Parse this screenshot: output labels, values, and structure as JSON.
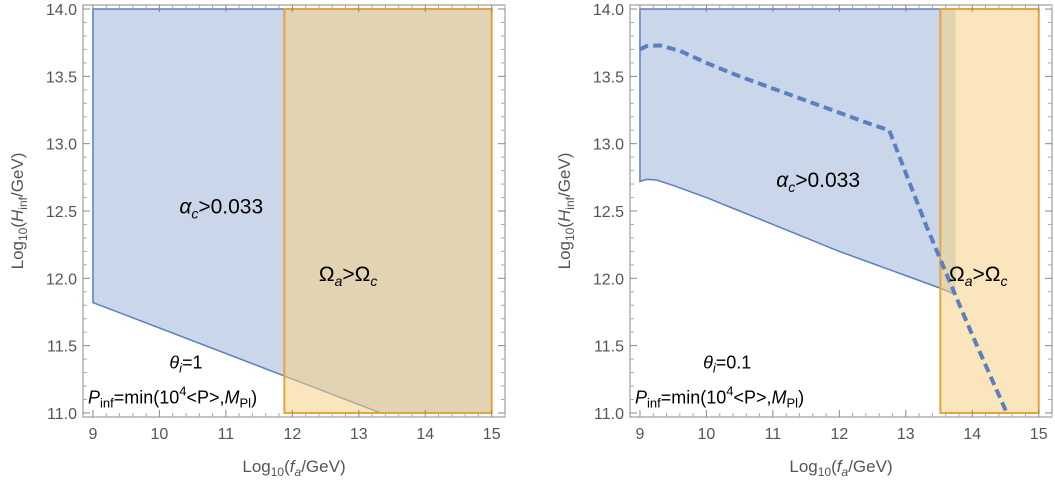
{
  "chart_data": [
    {
      "type": "area",
      "xlabel": {
        "base": "Log",
        "sub": "10",
        "open": "(",
        "var": "f",
        "varsub": "a",
        "rest": "/GeV)"
      },
      "ylabel": {
        "base": "Log",
        "sub": "10",
        "open": "(",
        "var": "H",
        "varsub": "inf",
        "rest": "/GeV)"
      },
      "xlim": [
        8.85,
        15.2
      ],
      "ylim": [
        10.97,
        14.03
      ],
      "xticks": [
        9,
        10,
        11,
        12,
        13,
        14,
        15
      ],
      "yticks": [
        11.0,
        11.5,
        12.0,
        12.5,
        13.0,
        13.5,
        14.0
      ],
      "xtick_labels": [
        "9",
        "10",
        "11",
        "12",
        "13",
        "14",
        "15"
      ],
      "ytick_labels": [
        "11.0",
        "11.5",
        "12.0",
        "12.5",
        "13.0",
        "13.5",
        "14.0"
      ],
      "regions": [
        {
          "name": "alpha-c-region",
          "color": "#b8c9e3",
          "edge": "#5b7fbf",
          "lower_boundary": [
            [
              9.0,
              11.82
            ],
            [
              13.33,
              11.0
            ],
            [
              15.0,
              11.0
            ]
          ],
          "upper_y": 14.0,
          "x_range": [
            9.0,
            15.0
          ]
        },
        {
          "name": "omega-a-region",
          "color": "#f5cf85",
          "edge": "#e6a23c",
          "x_range": [
            11.88,
            15.0
          ],
          "y_range": [
            11.0,
            14.0
          ]
        }
      ],
      "curves": [],
      "annotations": [
        {
          "kind": "alpha",
          "greek": "α",
          "sub": "c",
          "text": ">0.033",
          "x": 10.3,
          "y": 12.48
        },
        {
          "kind": "omega",
          "greek": "Ω",
          "sub": "a",
          "mid": ">Ω",
          "sub2": "c",
          "x": 12.4,
          "y": 11.98
        },
        {
          "kind": "theta",
          "greek": "θ",
          "sub": "i",
          "text": "=1",
          "x": 10.15,
          "y": 11.33
        },
        {
          "kind": "pinf",
          "text": "P",
          "sub": "inf",
          "mid": "=min(10",
          "sup": "4",
          "mid2": "<P>,",
          "var": "M",
          "sub2": "Pl",
          "end": ")",
          "x": 9.0,
          "y": 11.07
        }
      ]
    },
    {
      "type": "area",
      "xlabel": {
        "base": "Log",
        "sub": "10",
        "open": "(",
        "var": "f",
        "varsub": "a",
        "rest": "/GeV)"
      },
      "ylabel": {
        "base": "Log",
        "sub": "10",
        "open": "(",
        "var": "H",
        "varsub": "inf",
        "rest": "/GeV)"
      },
      "xlim": [
        8.85,
        15.2
      ],
      "ylim": [
        10.97,
        14.03
      ],
      "xticks": [
        9,
        10,
        11,
        12,
        13,
        14,
        15
      ],
      "yticks": [
        11.0,
        11.5,
        12.0,
        12.5,
        13.0,
        13.5,
        14.0
      ],
      "xtick_labels": [
        "9",
        "10",
        "11",
        "12",
        "13",
        "14",
        "15"
      ],
      "ytick_labels": [
        "11.0",
        "11.5",
        "12.0",
        "12.5",
        "13.0",
        "13.5",
        "14.0"
      ],
      "regions": [
        {
          "name": "alpha-c-region",
          "color": "#b8c9e3",
          "edge": "#5b7fbf",
          "lower_boundary": [
            [
              9.0,
              12.72
            ],
            [
              9.1,
              12.735
            ],
            [
              9.25,
              12.73
            ],
            [
              9.5,
              12.69
            ],
            [
              10.0,
              12.6
            ],
            [
              10.5,
              12.5
            ],
            [
              11.0,
              12.4
            ],
            [
              11.5,
              12.3
            ],
            [
              12.0,
              12.2
            ],
            [
              12.5,
              12.11
            ],
            [
              13.0,
              12.02
            ],
            [
              13.5,
              11.93
            ],
            [
              13.75,
              11.88
            ]
          ],
          "upper_y": 14.0,
          "x_range": [
            9.0,
            13.75
          ]
        },
        {
          "name": "omega-a-region",
          "color": "#f5cf85",
          "edge": "#e6a23c",
          "x_range": [
            13.52,
            15.0
          ],
          "y_range": [
            11.0,
            14.0
          ]
        }
      ],
      "curves": [
        {
          "name": "dashed-boundary",
          "style": "dashed",
          "color": "#5b7fbf",
          "points": [
            [
              9.0,
              13.7
            ],
            [
              9.1,
              13.725
            ],
            [
              9.3,
              13.73
            ],
            [
              9.6,
              13.69
            ],
            [
              10.0,
              13.6
            ],
            [
              10.5,
              13.5
            ],
            [
              11.0,
              13.41
            ],
            [
              11.5,
              13.32
            ],
            [
              12.0,
              13.23
            ],
            [
              12.5,
              13.14
            ],
            [
              12.75,
              13.1
            ],
            [
              13.3,
              12.4
            ],
            [
              13.75,
              11.87
            ],
            [
              14.0,
              11.58
            ],
            [
              14.25,
              11.3
            ],
            [
              14.52,
              11.0
            ]
          ]
        }
      ],
      "annotations": [
        {
          "kind": "alpha",
          "greek": "α",
          "sub": "c",
          "text": ">0.033",
          "x": 11.05,
          "y": 12.68
        },
        {
          "kind": "omega",
          "greek": "Ω",
          "sub": "a",
          "mid": ">Ω",
          "sub2": "c",
          "x": 13.65,
          "y": 11.98
        },
        {
          "kind": "theta",
          "greek": "θ",
          "sub": "i",
          "text": "=0.1",
          "x": 9.95,
          "y": 11.33
        },
        {
          "kind": "pinf",
          "text": "P",
          "sub": "inf",
          "mid": "=min(10",
          "sup": "4",
          "mid2": "<P>,",
          "var": "M",
          "sub2": "Pl",
          "end": ")",
          "x": 9.0,
          "y": 11.07
        }
      ]
    }
  ]
}
